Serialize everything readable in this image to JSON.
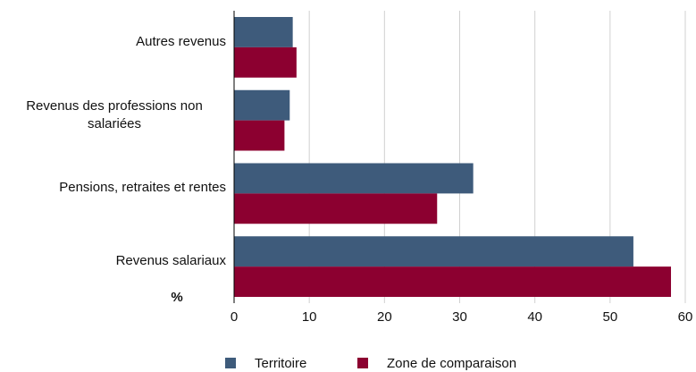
{
  "chart_data": {
    "type": "hbar",
    "categories": [
      "Autres revenus",
      "Revenus des professions non salariées",
      "Pensions, retraites et rentes",
      "Revenus salariaux"
    ],
    "series": [
      {
        "name": "Territoire",
        "color": "#3e5b7b",
        "values": [
          7.8,
          7.4,
          31.8,
          53.1
        ]
      },
      {
        "name": "Zone de comparaison",
        "color": "#8c0030",
        "values": [
          8.3,
          6.7,
          27.0,
          58.1
        ]
      }
    ],
    "xlim": [
      0,
      60
    ],
    "xticks": [
      0,
      10,
      20,
      30,
      40,
      50,
      60
    ],
    "grid": true,
    "axis_label": "%",
    "legend": "bottom"
  }
}
